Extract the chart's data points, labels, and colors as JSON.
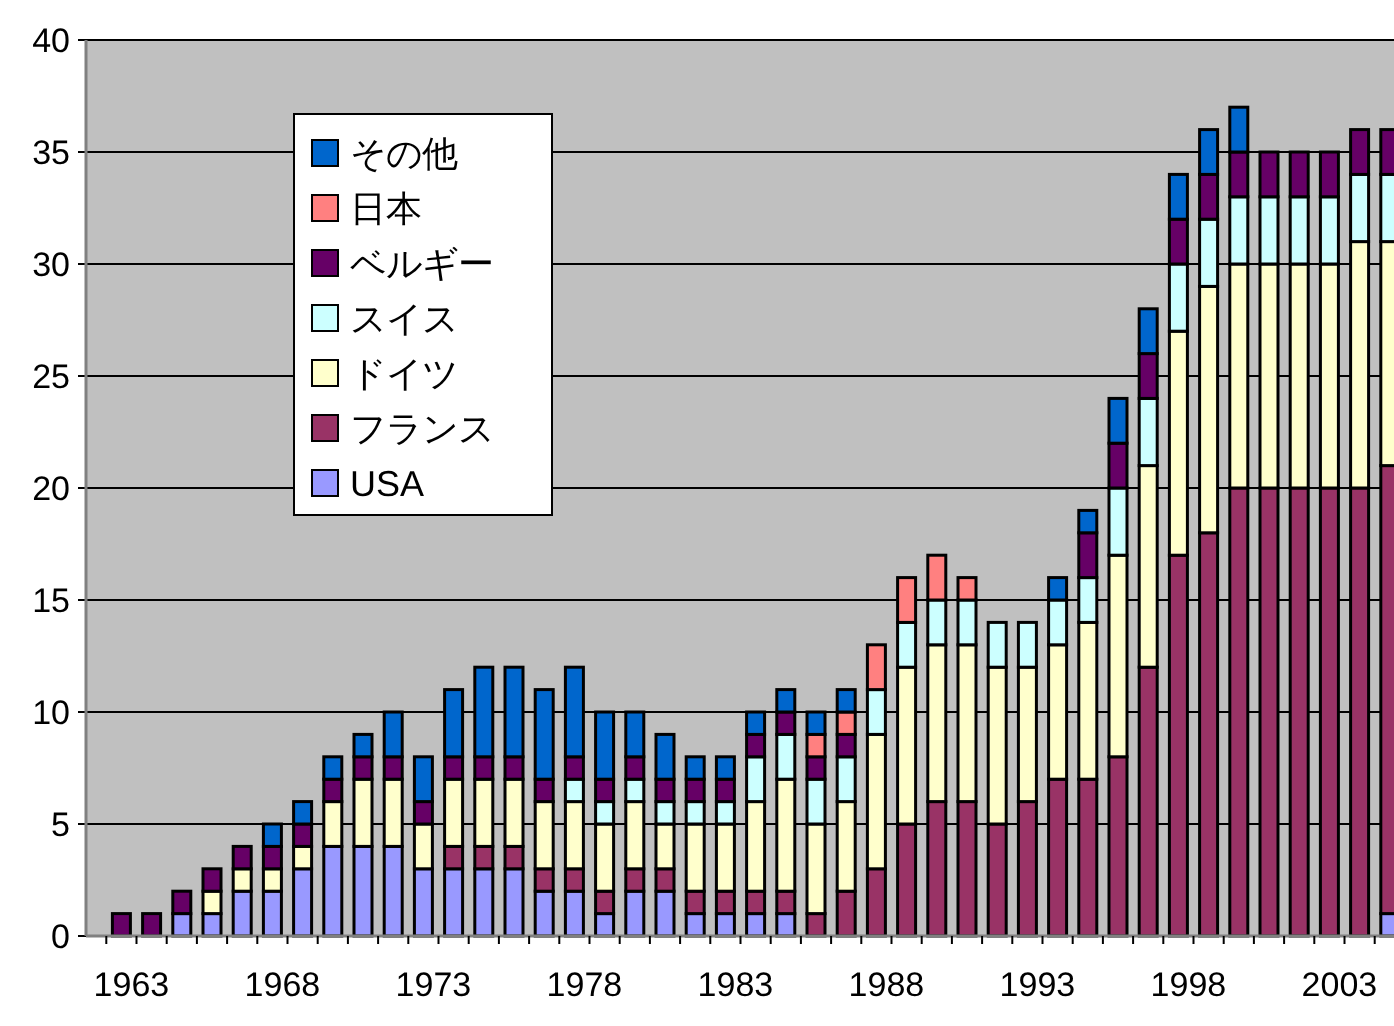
{
  "chart_data": {
    "type": "bar",
    "stacked": true,
    "categories": [
      "1963",
      null,
      null,
      null,
      null,
      "1968",
      null,
      null,
      null,
      null,
      "1973",
      null,
      null,
      null,
      null,
      "1978",
      null,
      null,
      null,
      null,
      "1983",
      null,
      null,
      null,
      null,
      "1988",
      null,
      null,
      null,
      null,
      "1993",
      null,
      null,
      null,
      null,
      "1998",
      null,
      null,
      null,
      null,
      "2003",
      null,
      null
    ],
    "series": [
      {
        "name": "USA",
        "color": "#9999ff",
        "values": [
          0,
          0,
          1,
          1,
          2,
          2,
          3,
          4,
          4,
          4,
          3,
          3,
          3,
          3,
          2,
          2,
          1,
          2,
          2,
          1,
          1,
          1,
          1,
          0,
          0,
          0,
          0,
          0,
          0,
          0,
          0,
          0,
          0,
          0,
          0,
          0,
          0,
          0,
          0,
          0,
          0,
          0,
          1
        ]
      },
      {
        "name": "フランス",
        "color": "#993366",
        "values": [
          0,
          0,
          0,
          0,
          0,
          0,
          0,
          0,
          0,
          0,
          0,
          1,
          1,
          1,
          1,
          1,
          1,
          1,
          1,
          1,
          1,
          1,
          1,
          1,
          2,
          3,
          5,
          6,
          6,
          5,
          6,
          7,
          7,
          8,
          12,
          17,
          18,
          20,
          20,
          20,
          20,
          20,
          20
        ]
      },
      {
        "name": "ドイツ",
        "color": "#ffffcc",
        "values": [
          0,
          0,
          0,
          1,
          1,
          1,
          1,
          2,
          3,
          3,
          2,
          3,
          3,
          3,
          3,
          3,
          3,
          3,
          2,
          3,
          3,
          4,
          5,
          4,
          4,
          6,
          7,
          7,
          7,
          7,
          6,
          6,
          7,
          9,
          9,
          10,
          11,
          10,
          10,
          10,
          10,
          11,
          10
        ]
      },
      {
        "name": "スイス",
        "color": "#ccffff",
        "values": [
          0,
          0,
          0,
          0,
          0,
          0,
          0,
          0,
          0,
          0,
          0,
          0,
          0,
          0,
          0,
          1,
          1,
          1,
          1,
          1,
          1,
          2,
          2,
          2,
          2,
          2,
          2,
          2,
          2,
          2,
          2,
          2,
          2,
          3,
          3,
          3,
          3,
          3,
          3,
          3,
          3,
          3,
          3
        ]
      },
      {
        "name": "ベルギー",
        "color": "#660066",
        "values": [
          1,
          1,
          1,
          1,
          1,
          1,
          1,
          1,
          1,
          1,
          1,
          1,
          1,
          1,
          1,
          1,
          1,
          1,
          1,
          1,
          1,
          1,
          1,
          1,
          1,
          0,
          0,
          0,
          0,
          0,
          0,
          0,
          2,
          2,
          2,
          2,
          2,
          2,
          2,
          2,
          2,
          2,
          2
        ]
      },
      {
        "name": "日本",
        "color": "#ff8080",
        "values": [
          0,
          0,
          0,
          0,
          0,
          0,
          0,
          0,
          0,
          0,
          0,
          0,
          0,
          0,
          0,
          0,
          0,
          0,
          0,
          0,
          0,
          0,
          0,
          1,
          1,
          2,
          2,
          2,
          1,
          0,
          0,
          0,
          0,
          0,
          0,
          0,
          0,
          0,
          0,
          0,
          0,
          0,
          0
        ]
      },
      {
        "name": "その他",
        "color": "#0066cc",
        "values": [
          0,
          0,
          0,
          0,
          0,
          1,
          1,
          1,
          1,
          2,
          2,
          3,
          4,
          4,
          4,
          4,
          3,
          2,
          2,
          1,
          1,
          1,
          1,
          1,
          1,
          0,
          0,
          0,
          0,
          0,
          0,
          1,
          1,
          2,
          2,
          2,
          2,
          2,
          0,
          0,
          0,
          0,
          0
        ]
      }
    ],
    "ylim": [
      0,
      40
    ],
    "yticks": [
      0,
      5,
      10,
      15,
      20,
      25,
      30,
      35,
      40
    ],
    "grid": "y",
    "legend": "top left"
  }
}
